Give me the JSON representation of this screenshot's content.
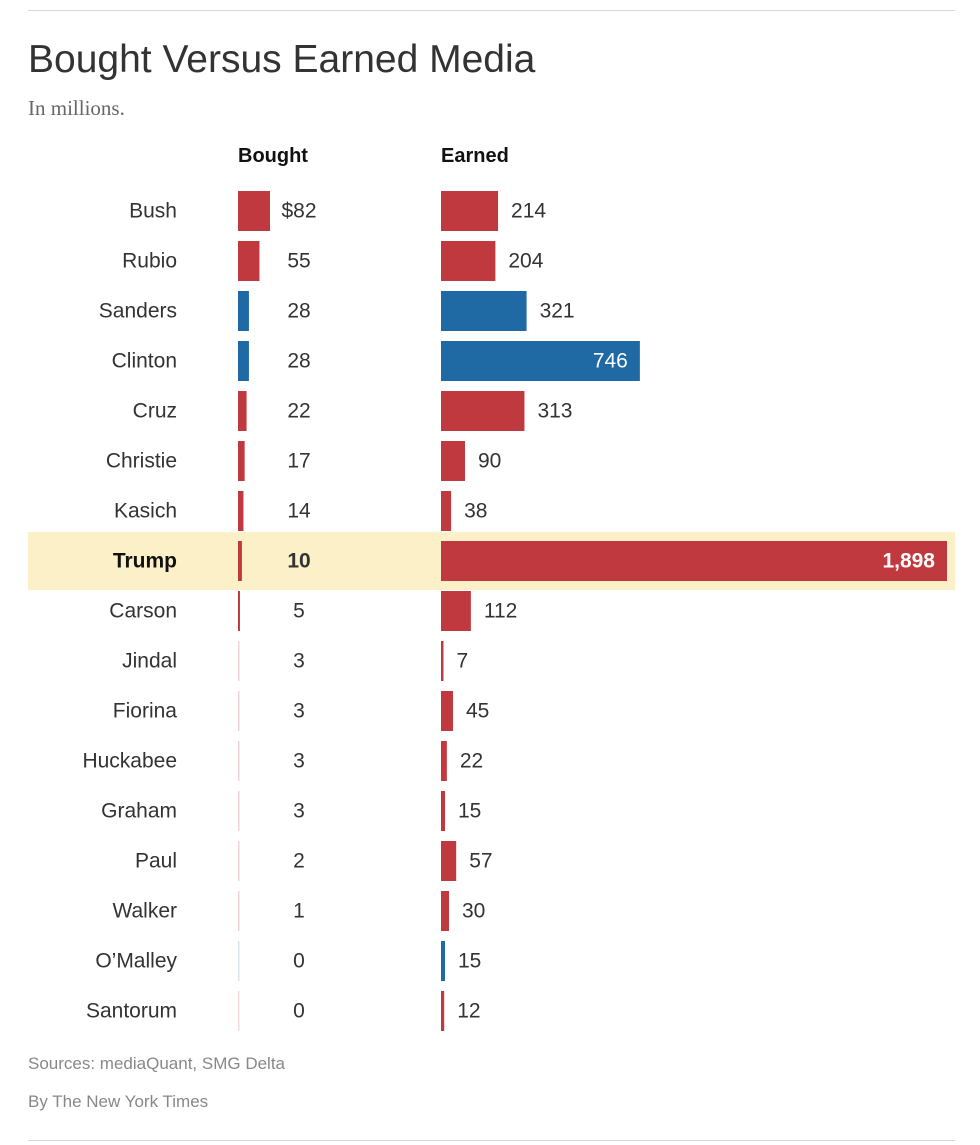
{
  "header": {
    "title": "Bought Versus Earned Media",
    "subtitle": "In millions."
  },
  "colors": {
    "republican": "#c0393f",
    "democrat": "#1f6aa5",
    "highlight": "#fcf0c8"
  },
  "chart_data": {
    "type": "bar",
    "title": "Bought Versus Earned Media",
    "subtitle": "In millions.",
    "unit": "millions of dollars",
    "series_labels": {
      "bought": "Bought",
      "earned": "Earned"
    },
    "highlighted": "Trump",
    "rows": [
      {
        "name": "Bush",
        "party": "R",
        "bought": 82,
        "bought_label": "$82",
        "earned": 214,
        "earned_label": "214"
      },
      {
        "name": "Rubio",
        "party": "R",
        "bought": 55,
        "bought_label": "55",
        "earned": 204,
        "earned_label": "204"
      },
      {
        "name": "Sanders",
        "party": "D",
        "bought": 28,
        "bought_label": "28",
        "earned": 321,
        "earned_label": "321"
      },
      {
        "name": "Clinton",
        "party": "D",
        "bought": 28,
        "bought_label": "28",
        "earned": 746,
        "earned_label": "746"
      },
      {
        "name": "Cruz",
        "party": "R",
        "bought": 22,
        "bought_label": "22",
        "earned": 313,
        "earned_label": "313"
      },
      {
        "name": "Christie",
        "party": "R",
        "bought": 17,
        "bought_label": "17",
        "earned": 90,
        "earned_label": "90"
      },
      {
        "name": "Kasich",
        "party": "R",
        "bought": 14,
        "bought_label": "14",
        "earned": 38,
        "earned_label": "38"
      },
      {
        "name": "Trump",
        "party": "R",
        "bought": 10,
        "bought_label": "10",
        "earned": 1898,
        "earned_label": "1,898"
      },
      {
        "name": "Carson",
        "party": "R",
        "bought": 5,
        "bought_label": "5",
        "earned": 112,
        "earned_label": "112"
      },
      {
        "name": "Jindal",
        "party": "R",
        "bought": 3,
        "bought_label": "3",
        "earned": 7,
        "earned_label": "7"
      },
      {
        "name": "Fiorina",
        "party": "R",
        "bought": 3,
        "bought_label": "3",
        "earned": 45,
        "earned_label": "45"
      },
      {
        "name": "Huckabee",
        "party": "R",
        "bought": 3,
        "bought_label": "3",
        "earned": 22,
        "earned_label": "22"
      },
      {
        "name": "Graham",
        "party": "R",
        "bought": 3,
        "bought_label": "3",
        "earned": 15,
        "earned_label": "15"
      },
      {
        "name": "Paul",
        "party": "R",
        "bought": 2,
        "bought_label": "2",
        "earned": 57,
        "earned_label": "57"
      },
      {
        "name": "Walker",
        "party": "R",
        "bought": 1,
        "bought_label": "1",
        "earned": 30,
        "earned_label": "30"
      },
      {
        "name": "O’Malley",
        "party": "D",
        "bought": 0,
        "bought_label": "0",
        "earned": 15,
        "earned_label": "15"
      },
      {
        "name": "Santorum",
        "party": "R",
        "bought": 0,
        "bought_label": "0",
        "earned": 12,
        "earned_label": "12"
      }
    ]
  },
  "footer": {
    "sources": "Sources: mediaQuant, SMG Delta",
    "byline": "By The New York Times"
  }
}
